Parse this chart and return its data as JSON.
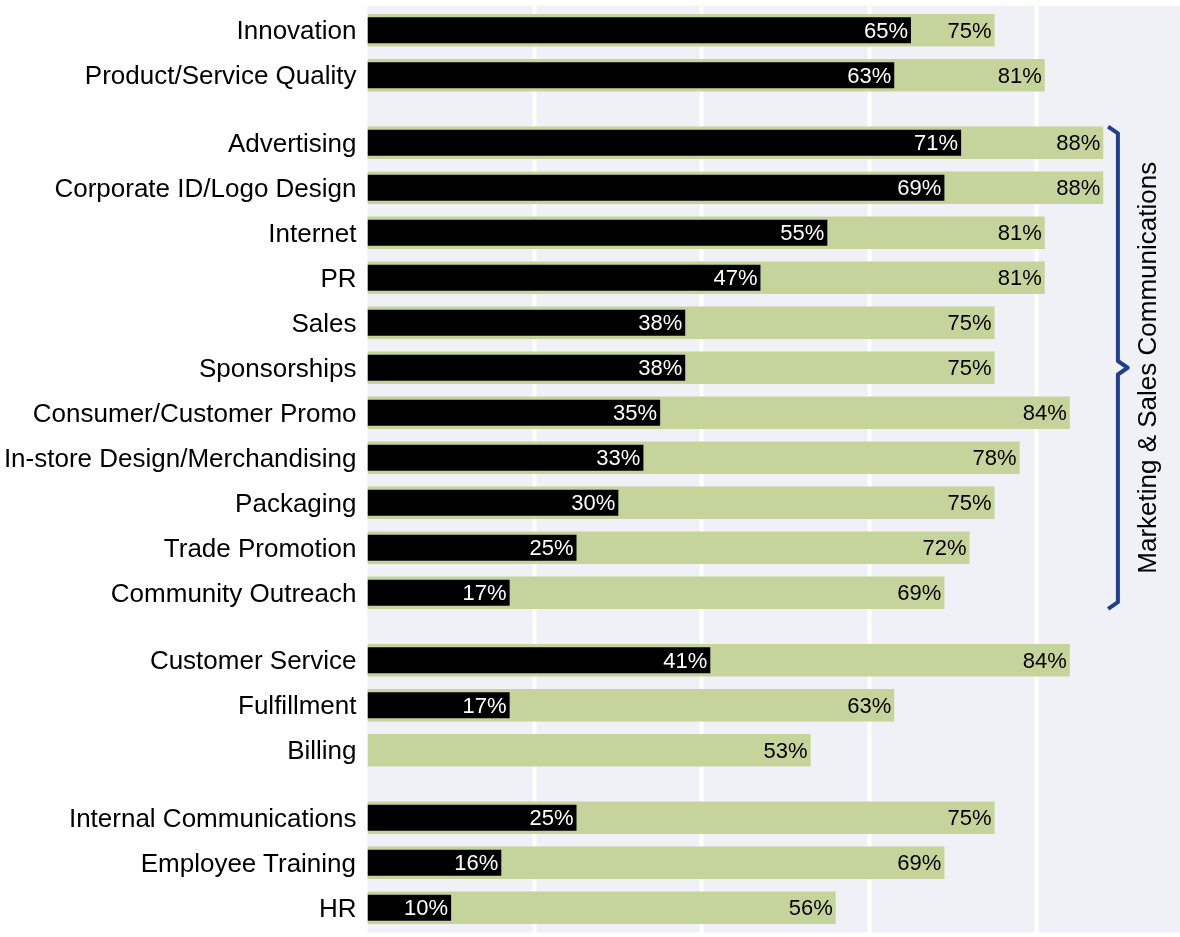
{
  "chart_data": {
    "type": "bar",
    "orientation": "horizontal",
    "categories": [
      "Innovation",
      "Product/Service Quality",
      null,
      "Advertising",
      "Corporate ID/Logo Design",
      "Internet",
      "PR",
      "Sales",
      "Sponsorships",
      "Consumer/Customer Promo",
      "In-store Design/Merchandising",
      "Packaging",
      "Trade Promotion",
      "Community Outreach",
      null,
      "Customer Service",
      "Fulfillment",
      "Billing",
      null,
      "Internal Communications",
      "Employee Training",
      "HR"
    ],
    "series": [
      {
        "color": "#c4d49a",
        "values": [
          75,
          81,
          null,
          88,
          88,
          81,
          81,
          75,
          75,
          84,
          78,
          75,
          72,
          69,
          null,
          84,
          63,
          53,
          null,
          75,
          69,
          56
        ],
        "value_labels": [
          "75%",
          "81%",
          null,
          "88%",
          "88%",
          "81%",
          "81%",
          "75%",
          "75%",
          "84%",
          "78%",
          "75%",
          "72%",
          "69%",
          null,
          "84%",
          "63%",
          "53%",
          null,
          "75%",
          "69%",
          "56%"
        ]
      },
      {
        "color": "#000000",
        "values": [
          65,
          63,
          null,
          71,
          69,
          55,
          47,
          38,
          38,
          35,
          33,
          30,
          25,
          17,
          null,
          41,
          17,
          null,
          null,
          25,
          16,
          10
        ],
        "value_labels": [
          "65%",
          "63%",
          null,
          "71%",
          "69%",
          "55%",
          "47%",
          "38%",
          "38%",
          "35%",
          "33%",
          "30%",
          "25%",
          "17%",
          null,
          "41%",
          "17%",
          null,
          null,
          "25%",
          "16%",
          "10%"
        ]
      }
    ],
    "grid": "x",
    "tick_labels": "y",
    "annotations": [
      "Marketing & Sales Communications"
    ]
  }
}
